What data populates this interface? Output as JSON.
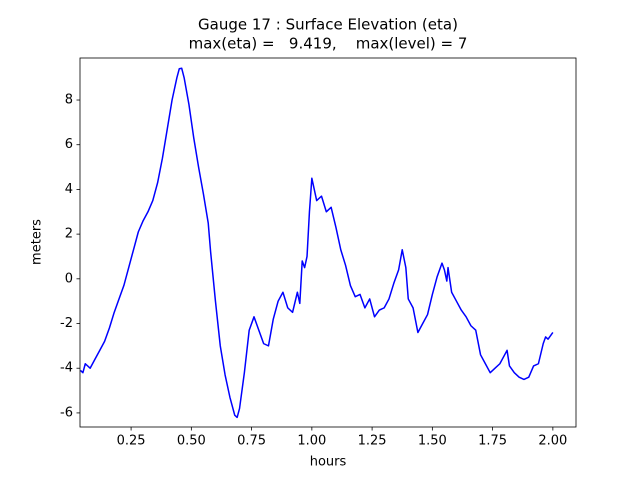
{
  "chart_data": {
    "type": "line",
    "title": "Gauge 17 : Surface Elevation (eta)",
    "subtitle": "max(eta) =   9.419,    max(level) = 7",
    "x_label": "hours",
    "y_label": "meters",
    "xlim": [
      0.038,
      2.096
    ],
    "ylim": [
      -6.63,
      9.88
    ],
    "xticks": [
      0.25,
      {
        "value": 0.5,
        "label": "0.50"
      },
      0.75,
      {
        "value": 1.0,
        "label": "1.00"
      },
      1.25,
      {
        "value": 1.5,
        "label": "1.50"
      },
      1.75,
      {
        "value": 2.0,
        "label": "2.00"
      }
    ],
    "yticks": [
      -6,
      -4,
      -2,
      0,
      2,
      4,
      6,
      8
    ],
    "grid": false,
    "x": [
      0.04,
      0.05,
      0.06,
      0.08,
      0.1,
      0.12,
      0.14,
      0.16,
      0.18,
      0.2,
      0.22,
      0.24,
      0.26,
      0.28,
      0.3,
      0.32,
      0.34,
      0.36,
      0.38,
      0.4,
      0.42,
      0.44,
      0.45,
      0.46,
      0.47,
      0.49,
      0.51,
      0.53,
      0.55,
      0.57,
      0.58,
      0.6,
      0.62,
      0.64,
      0.66,
      0.68,
      0.69,
      0.7,
      0.72,
      0.74,
      0.76,
      0.78,
      0.8,
      0.82,
      0.84,
      0.86,
      0.88,
      0.9,
      0.92,
      0.94,
      0.95,
      0.96,
      0.97,
      0.98,
      0.99,
      1.0,
      1.02,
      1.04,
      1.06,
      1.08,
      1.1,
      1.12,
      1.14,
      1.16,
      1.18,
      1.2,
      1.22,
      1.24,
      1.26,
      1.28,
      1.3,
      1.32,
      1.34,
      1.36,
      1.375,
      1.39,
      1.4,
      1.42,
      1.44,
      1.46,
      1.48,
      1.5,
      1.52,
      1.54,
      1.55,
      1.56,
      1.565,
      1.58,
      1.6,
      1.62,
      1.64,
      1.66,
      1.68,
      1.7,
      1.72,
      1.74,
      1.76,
      1.78,
      1.8,
      1.81,
      1.82,
      1.84,
      1.86,
      1.88,
      1.9,
      1.92,
      1.94,
      1.96,
      1.97,
      1.98,
      2.0
    ],
    "series": [
      {
        "name": "eta",
        "color": "#0000ff",
        "values": [
          -4.1,
          -4.2,
          -3.8,
          -4.0,
          -3.6,
          -3.2,
          -2.8,
          -2.2,
          -1.5,
          -0.9,
          -0.3,
          0.5,
          1.3,
          2.1,
          2.6,
          3.0,
          3.5,
          4.3,
          5.4,
          6.7,
          8.0,
          9.0,
          9.4,
          9.419,
          9.0,
          7.8,
          6.3,
          5.0,
          3.8,
          2.5,
          1.2,
          -1.0,
          -3.0,
          -4.3,
          -5.3,
          -6.1,
          -6.2,
          -5.8,
          -4.2,
          -2.3,
          -1.7,
          -2.3,
          -2.9,
          -3.0,
          -1.8,
          -1.0,
          -0.6,
          -1.3,
          -1.5,
          -0.6,
          -1.1,
          0.8,
          0.5,
          1.0,
          3.0,
          4.5,
          3.5,
          3.7,
          3.0,
          3.2,
          2.3,
          1.3,
          0.6,
          -0.3,
          -0.8,
          -0.7,
          -1.3,
          -0.9,
          -1.7,
          -1.4,
          -1.3,
          -0.9,
          -0.2,
          0.4,
          1.3,
          0.5,
          -0.9,
          -1.3,
          -2.4,
          -2.0,
          -1.6,
          -0.7,
          0.1,
          0.7,
          0.4,
          -0.1,
          0.5,
          -0.6,
          -1.0,
          -1.4,
          -1.7,
          -2.1,
          -2.3,
          -3.4,
          -3.8,
          -4.2,
          -4.0,
          -3.8,
          -3.4,
          -3.2,
          -3.9,
          -4.2,
          -4.4,
          -4.5,
          -4.4,
          -3.9,
          -3.8,
          -2.9,
          -2.6,
          -2.7,
          -2.4
        ]
      }
    ]
  }
}
